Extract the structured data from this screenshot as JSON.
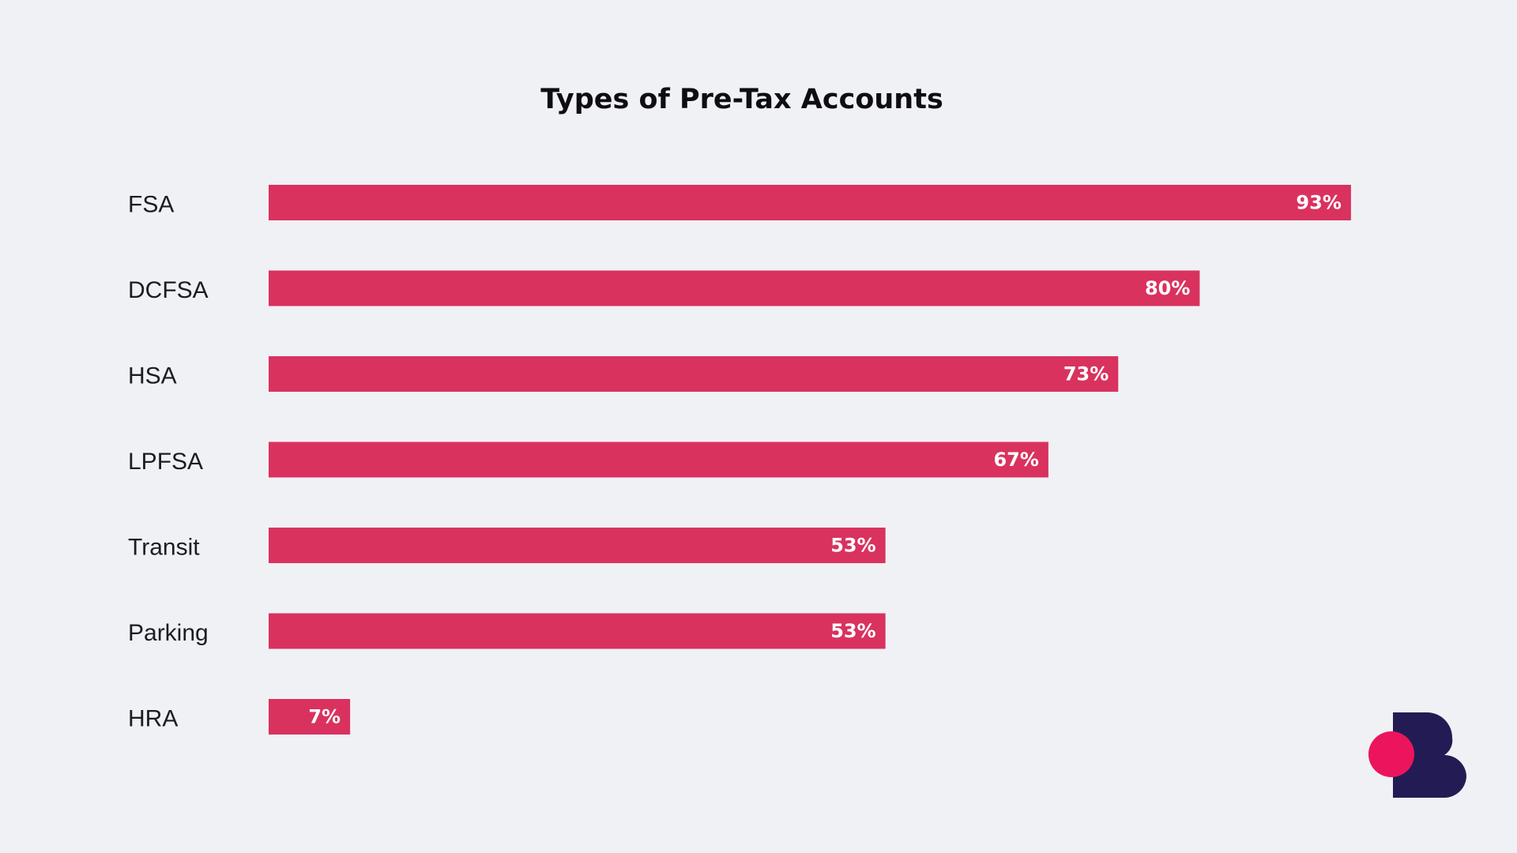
{
  "chart_data": {
    "type": "bar",
    "orientation": "horizontal",
    "title": "Types of Pre-Tax Accounts",
    "categories": [
      "FSA",
      "DCFSA",
      "HSA",
      "LPFSA",
      "Transit",
      "Parking",
      "HRA"
    ],
    "values": [
      93,
      80,
      73,
      67,
      53,
      53,
      7
    ],
    "value_labels": [
      "93%",
      "80%",
      "73%",
      "67%",
      "53%",
      "53%",
      "7%"
    ],
    "xlim": [
      0,
      100
    ],
    "grid": false,
    "legend": "none",
    "bar_color": "#D9325F",
    "label_color": "#FFFFFF"
  },
  "colors": {
    "background": "#F0F1F5",
    "logo_primary": "#231C54",
    "logo_accent": "#EC145D"
  },
  "logo": {
    "icon": "brand-b-logo-icon"
  }
}
